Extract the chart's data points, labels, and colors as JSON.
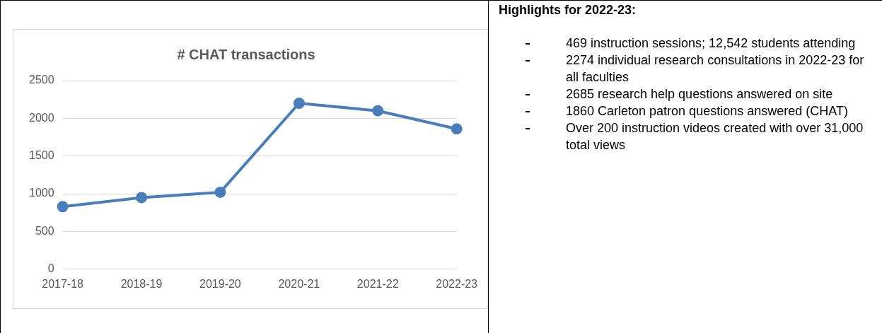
{
  "chart_data": [
    {
      "type": "line",
      "title": "# CHAT transactions",
      "categories": [
        "2017-18",
        "2018-19",
        "2019-20",
        "2020-21",
        "2021-22",
        "2022-23"
      ],
      "series": [
        {
          "color": "#4a7ebb",
          "values": [
            830,
            950,
            1020,
            2200,
            2100,
            1860
          ]
        }
      ],
      "ylim": [
        0,
        2500
      ],
      "yticks": [
        0,
        500,
        1000,
        1500,
        2000,
        2500
      ],
      "grid": "y",
      "legend": false,
      "marker": "circle",
      "line_style": "solid"
    },
    {
      "type": "other",
      "title": "Highlights for 2022-23:",
      "annotations": [
        "469 instruction sessions; 12,542 students attending",
        "2274 individual research consultations in 2022-23 for all faculties",
        "2685 research help questions answered on site",
        "1860 Carleton patron questions answered (CHAT)",
        "Over 200 instruction videos created with over 31,000 total views"
      ]
    }
  ]
}
